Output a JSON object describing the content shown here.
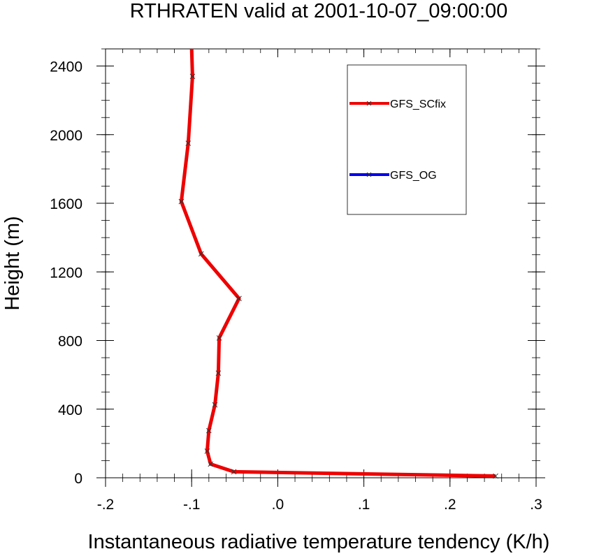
{
  "chart_data": {
    "type": "line",
    "title": "RTHRATEN valid at 2001-10-07_09:00:00",
    "xlabel": "Instantaneous radiative temperature tendency (K/h)",
    "ylabel": "Height (m)",
    "xlim": [
      -0.2,
      0.3
    ],
    "ylim": [
      0,
      2500
    ],
    "x_ticks": [
      -0.2,
      -0.1,
      0.0,
      0.1,
      0.2,
      0.3
    ],
    "x_tick_labels": [
      "-.2",
      "-.1",
      ".0",
      ".1",
      ".2",
      ".3"
    ],
    "y_ticks": [
      0,
      400,
      800,
      1200,
      1600,
      2000,
      2400
    ],
    "y_tick_labels": [
      "0",
      "400",
      "800",
      "1200",
      "1600",
      "2000",
      "2400"
    ],
    "grid": false,
    "legend_position": "top-right",
    "series": [
      {
        "name": "GFS_SCfix",
        "color": "#ee0000",
        "marker": "x",
        "points": [
          [
            0.253,
            10
          ],
          [
            -0.051,
            35
          ],
          [
            -0.078,
            80
          ],
          [
            -0.082,
            155
          ],
          [
            -0.08,
            275
          ],
          [
            -0.073,
            425
          ],
          [
            -0.069,
            610
          ],
          [
            -0.068,
            815
          ],
          [
            -0.045,
            1045
          ],
          [
            -0.089,
            1305
          ],
          [
            -0.112,
            1610
          ],
          [
            -0.104,
            1950
          ],
          [
            -0.099,
            2340
          ],
          [
            -0.1,
            2500
          ]
        ]
      },
      {
        "name": "GFS_OG",
        "color": "#0000ee",
        "marker": "x",
        "points": []
      }
    ]
  }
}
